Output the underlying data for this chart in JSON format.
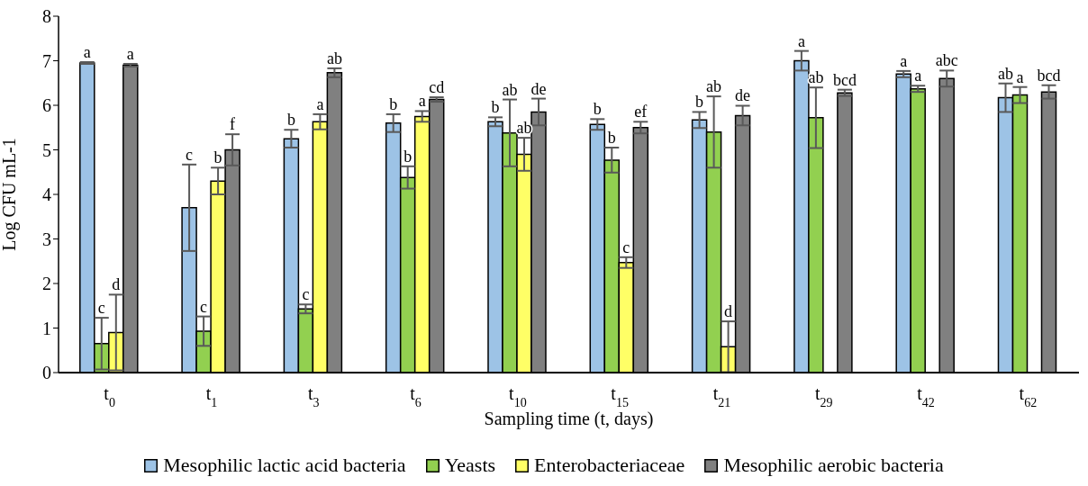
{
  "chart_data": {
    "type": "bar",
    "xlabel": "Sampling time (t, days)",
    "ylabel": "Log CFU mL-1",
    "categories": [
      "t$_{0}$",
      "t$_{1}$",
      "t$_{3}$",
      "t$_{6}$",
      "t$_{10}$",
      "t$_{15}$",
      "t$_{21}$",
      "t$_{29}$",
      "t$_{42}$",
      "t$_{62}$"
    ],
    "ylim": [
      0,
      8
    ],
    "yticks": [
      0,
      1,
      2,
      3,
      4,
      5,
      6,
      7,
      8
    ],
    "grid": false,
    "legend": "bottom",
    "series": [
      {
        "name": "Mesophilic lactic acid bacteria",
        "color": "#9dc3e6",
        "values": [
          6.95,
          3.7,
          5.25,
          5.6,
          5.63,
          5.57,
          5.67,
          7.0,
          6.7,
          6.17
        ],
        "errors": [
          0.02,
          0.97,
          0.2,
          0.2,
          0.1,
          0.12,
          0.18,
          0.22,
          0.07,
          0.32
        ],
        "value_labels": [
          "a",
          "c",
          "b",
          "b",
          "b",
          "b",
          "b",
          "a",
          "a",
          "ab"
        ]
      },
      {
        "name": "Yeasts",
        "color": "#92d050",
        "values": [
          0.65,
          0.93,
          1.43,
          4.38,
          5.38,
          4.77,
          5.4,
          5.72,
          6.37,
          6.23
        ],
        "errors": [
          0.58,
          0.33,
          0.1,
          0.25,
          0.75,
          0.28,
          0.8,
          0.68,
          0.07,
          0.18
        ],
        "value_labels": [
          "c",
          "c",
          "c",
          "b",
          "ab",
          "b",
          "ab",
          "ab",
          "a",
          "a"
        ]
      },
      {
        "name": "Enterobacteriaceae",
        "color": "#ffff66",
        "values": [
          0.9,
          4.3,
          5.63,
          5.75,
          4.9,
          2.47,
          0.58,
          null,
          null,
          null
        ],
        "errors": [
          0.85,
          0.3,
          0.17,
          0.12,
          0.37,
          0.12,
          0.57,
          null,
          null,
          null
        ],
        "value_labels": [
          "d",
          "b",
          "a",
          "a",
          "ab",
          "c",
          "d",
          null,
          null,
          null
        ]
      },
      {
        "name": "Mesophilic aerobic bacteria",
        "color": "#808080",
        "values": [
          6.9,
          5.0,
          6.73,
          6.13,
          5.85,
          5.5,
          5.77,
          6.28,
          6.6,
          6.3
        ],
        "errors": [
          0.03,
          0.35,
          0.1,
          0.05,
          0.3,
          0.13,
          0.22,
          0.07,
          0.18,
          0.15
        ],
        "value_labels": [
          "a",
          "f",
          "ab",
          "cd",
          "de",
          "ef",
          "de",
          "bcd",
          "abc",
          "bcd"
        ]
      }
    ]
  }
}
